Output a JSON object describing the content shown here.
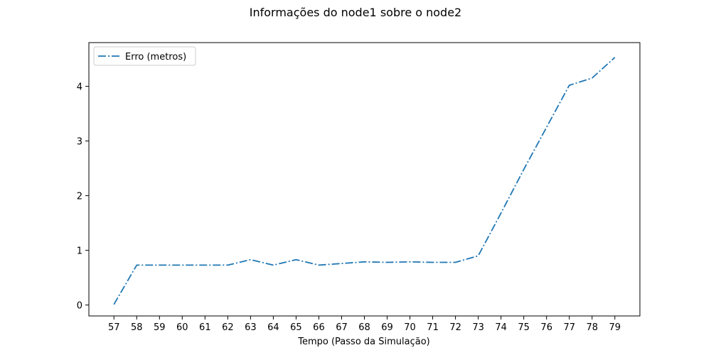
{
  "chart_data": {
    "type": "line",
    "title": "Informações do node1 sobre o node2",
    "xlabel": "Tempo (Passo da Simulação)",
    "ylabel": "",
    "x": [
      57,
      58,
      59,
      60,
      61,
      62,
      63,
      64,
      65,
      66,
      67,
      68,
      69,
      70,
      71,
      72,
      73,
      74,
      75,
      76,
      77,
      78,
      79
    ],
    "series": [
      {
        "name": "Erro (metros)",
        "values": [
          0.01,
          0.73,
          0.73,
          0.73,
          0.73,
          0.73,
          0.83,
          0.73,
          0.83,
          0.73,
          0.76,
          0.79,
          0.78,
          0.79,
          0.78,
          0.78,
          0.9,
          1.68,
          2.48,
          3.25,
          4.02,
          4.15,
          4.53
        ],
        "color": "#1f77b4",
        "style": "dash-dot"
      }
    ],
    "xlim": [
      55.9,
      80.1
    ],
    "ylim": [
      -0.2,
      4.8
    ],
    "xticks": [
      57,
      58,
      59,
      60,
      61,
      62,
      63,
      64,
      65,
      66,
      67,
      68,
      69,
      70,
      71,
      72,
      73,
      74,
      75,
      76,
      77,
      78,
      79
    ],
    "yticks": [
      0,
      1,
      2,
      3,
      4
    ],
    "grid": false,
    "legend_position": "top-left"
  }
}
